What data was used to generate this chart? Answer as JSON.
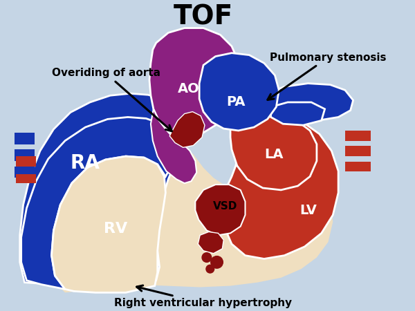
{
  "title": "TOF",
  "title_fontsize": 28,
  "title_fontweight": "bold",
  "background_color": "#c5d5e5",
  "colors": {
    "blue": "#1535b0",
    "purple": "#8b2080",
    "red": "#c03020",
    "dark_red": "#8b0f0f",
    "cream": "#f0dfc0",
    "white": "#ffffff",
    "black": "#000000"
  },
  "labels": {
    "AO": "AO",
    "PA": "PA",
    "RA": "RA",
    "RV": "RV",
    "LA": "LA",
    "LV": "LV",
    "VSD": "VSD"
  },
  "annotations": {
    "overiding": "Overiding of aorta",
    "pulmonary": "Pulmonary stenosis",
    "hypertrophy": "Right ventricular hypertrophy"
  }
}
